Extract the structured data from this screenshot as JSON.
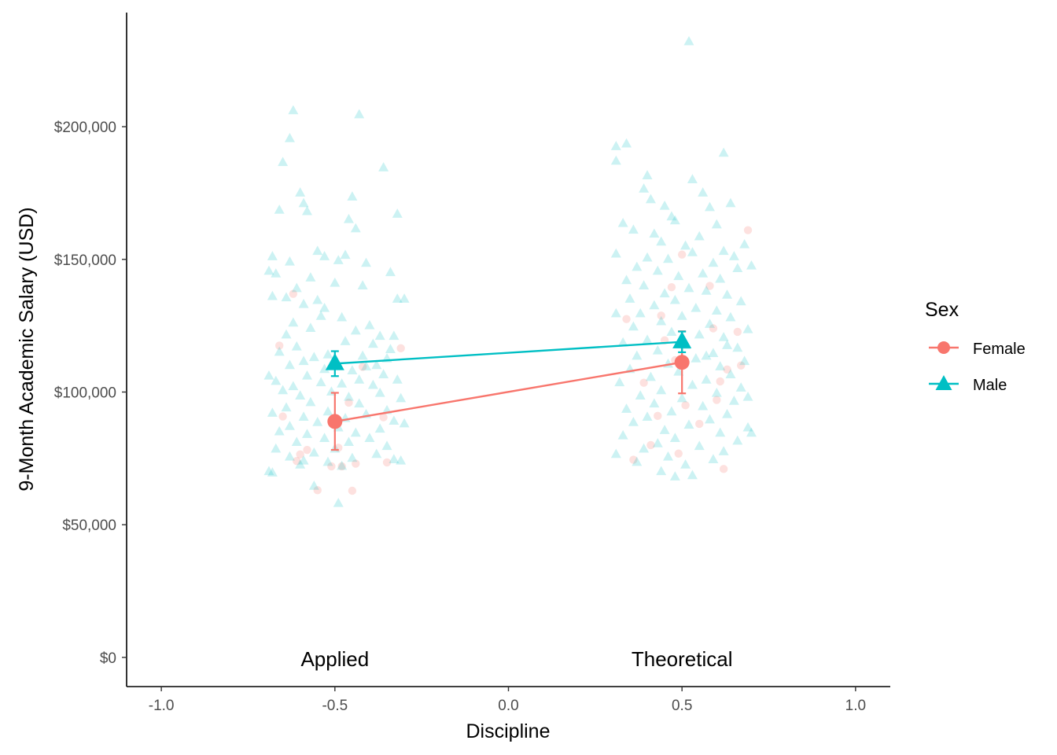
{
  "chart_data": {
    "type": "scatter",
    "title": "",
    "xlabel": "Discipline",
    "ylabel": "9-Month Academic Salary (USD)",
    "xlim": [
      -1.1,
      1.1
    ],
    "ylim": [
      -11000,
      243000
    ],
    "x_ticks": [
      -1.0,
      -0.5,
      0.0,
      0.5,
      1.0
    ],
    "x_tick_labels": [
      "-1.0",
      "-0.5",
      "0.0",
      "0.5",
      "1.0"
    ],
    "y_ticks": [
      0,
      50000,
      100000,
      150000,
      200000
    ],
    "y_tick_labels": [
      "$0",
      "$50,000",
      "$100,000",
      "$150,000",
      "$200,000"
    ],
    "group_labels": [
      {
        "text": "Applied",
        "x": -0.5,
        "y": 0
      },
      {
        "text": "Theoretical",
        "x": 0.5,
        "y": 0
      }
    ],
    "grid": false,
    "legend": {
      "title": "Sex",
      "placement": "right"
    },
    "series": [
      {
        "name": "Female",
        "color": "#F8766D",
        "marker": "circle",
        "summary": [
          {
            "x": -0.5,
            "mean": 88900,
            "ci_low": 78200,
            "ci_high": 99700
          },
          {
            "x": 0.5,
            "mean": 111200,
            "ci_low": 99500,
            "ci_high": 122900
          }
        ],
        "points": [
          [
            -0.66,
            117500
          ],
          [
            -0.62,
            137000
          ],
          [
            -0.65,
            90800
          ],
          [
            -0.58,
            78200
          ],
          [
            -0.6,
            76500
          ],
          [
            -0.61,
            74000
          ],
          [
            -0.55,
            63000
          ],
          [
            -0.51,
            72000
          ],
          [
            -0.48,
            72000
          ],
          [
            -0.45,
            62800
          ],
          [
            -0.44,
            73000
          ],
          [
            -0.42,
            109500
          ],
          [
            -0.36,
            90500
          ],
          [
            -0.35,
            73500
          ],
          [
            -0.31,
            116500
          ],
          [
            -0.49,
            79000
          ],
          [
            -0.46,
            96000
          ],
          [
            0.34,
            127500
          ],
          [
            0.36,
            74500
          ],
          [
            0.41,
            80000
          ],
          [
            0.43,
            91000
          ],
          [
            0.44,
            128800
          ],
          [
            0.45,
            119500
          ],
          [
            0.47,
            139500
          ],
          [
            0.48,
            112000
          ],
          [
            0.49,
            76800
          ],
          [
            0.5,
            151800
          ],
          [
            0.51,
            95000
          ],
          [
            0.58,
            140000
          ],
          [
            0.59,
            124000
          ],
          [
            0.6,
            97000
          ],
          [
            0.61,
            104000
          ],
          [
            0.62,
            71000
          ],
          [
            0.63,
            108500
          ],
          [
            0.66,
            122700
          ],
          [
            0.67,
            110000
          ],
          [
            0.69,
            161000
          ],
          [
            0.55,
            88000
          ],
          [
            0.39,
            103500
          ]
        ]
      },
      {
        "name": "Male",
        "color": "#00BFC4",
        "marker": "triangle",
        "summary": [
          {
            "x": -0.5,
            "mean": 110700,
            "ci_low": 106000,
            "ci_high": 115400
          },
          {
            "x": 0.5,
            "mean": 118900,
            "ci_low": 115000,
            "ci_high": 122800
          }
        ],
        "points": [
          [
            -0.62,
            206000
          ],
          [
            -0.43,
            204500
          ],
          [
            -0.63,
            195500
          ],
          [
            -0.65,
            186500
          ],
          [
            -0.36,
            184500
          ],
          [
            -0.6,
            175000
          ],
          [
            -0.59,
            171000
          ],
          [
            -0.45,
            173500
          ],
          [
            -0.66,
            168500
          ],
          [
            -0.58,
            168000
          ],
          [
            -0.32,
            167000
          ],
          [
            -0.46,
            165000
          ],
          [
            -0.44,
            161500
          ],
          [
            -0.55,
            153000
          ],
          [
            -0.53,
            151000
          ],
          [
            -0.68,
            151000
          ],
          [
            -0.49,
            149500
          ],
          [
            -0.63,
            149000
          ],
          [
            -0.41,
            148500
          ],
          [
            -0.47,
            151500
          ],
          [
            -0.69,
            145500
          ],
          [
            -0.34,
            145000
          ],
          [
            -0.67,
            144500
          ],
          [
            -0.57,
            143000
          ],
          [
            -0.5,
            141000
          ],
          [
            -0.61,
            139000
          ],
          [
            -0.68,
            136000
          ],
          [
            -0.64,
            135500
          ],
          [
            -0.55,
            134500
          ],
          [
            -0.32,
            135000
          ],
          [
            -0.3,
            135000
          ],
          [
            -0.59,
            133000
          ],
          [
            -0.53,
            131500
          ],
          [
            -0.48,
            128000
          ],
          [
            -0.62,
            126000
          ],
          [
            -0.57,
            124000
          ],
          [
            -0.44,
            123000
          ],
          [
            -0.4,
            125000
          ],
          [
            -0.37,
            121000
          ],
          [
            -0.64,
            121500
          ],
          [
            -0.33,
            121000
          ],
          [
            -0.47,
            119000
          ],
          [
            -0.39,
            118000
          ],
          [
            -0.61,
            117000
          ],
          [
            -0.66,
            115000
          ],
          [
            -0.52,
            114000
          ],
          [
            -0.42,
            113500
          ],
          [
            -0.56,
            113000
          ],
          [
            -0.35,
            112500
          ],
          [
            -0.59,
            111500
          ],
          [
            -0.63,
            110000
          ],
          [
            -0.38,
            110000
          ],
          [
            -0.41,
            109500
          ],
          [
            -0.53,
            108500
          ],
          [
            -0.45,
            108000
          ],
          [
            -0.69,
            106000
          ],
          [
            -0.36,
            106500
          ],
          [
            -0.58,
            106000
          ],
          [
            -0.43,
            104500
          ],
          [
            -0.67,
            104000
          ],
          [
            -0.32,
            104500
          ],
          [
            -0.48,
            103000
          ],
          [
            -0.54,
            103500
          ],
          [
            -0.62,
            102000
          ],
          [
            -0.39,
            102500
          ],
          [
            -0.65,
            100500
          ],
          [
            -0.51,
            100000
          ],
          [
            -0.37,
            99500
          ],
          [
            -0.6,
            98500
          ],
          [
            -0.46,
            98000
          ],
          [
            -0.31,
            97500
          ],
          [
            -0.57,
            96000
          ],
          [
            -0.43,
            95500
          ],
          [
            -0.64,
            94000
          ],
          [
            -0.35,
            93000
          ],
          [
            -0.52,
            92500
          ],
          [
            -0.68,
            92000
          ],
          [
            -0.41,
            91500
          ],
          [
            -0.59,
            90500
          ],
          [
            -0.47,
            90000
          ],
          [
            -0.33,
            89000
          ],
          [
            -0.55,
            88500
          ],
          [
            -0.63,
            87000
          ],
          [
            -0.49,
            86500
          ],
          [
            -0.37,
            86000
          ],
          [
            -0.66,
            85000
          ],
          [
            -0.44,
            84500
          ],
          [
            -0.58,
            84000
          ],
          [
            -0.53,
            82500
          ],
          [
            -0.4,
            82500
          ],
          [
            -0.61,
            81000
          ],
          [
            -0.46,
            81000
          ],
          [
            -0.35,
            79500
          ],
          [
            -0.67,
            78500
          ],
          [
            -0.5,
            78500
          ],
          [
            -0.56,
            77000
          ],
          [
            -0.38,
            76500
          ],
          [
            -0.63,
            75500
          ],
          [
            -0.45,
            75000
          ],
          [
            -0.33,
            74500
          ],
          [
            -0.59,
            74000
          ],
          [
            -0.52,
            73500
          ],
          [
            -0.31,
            74000
          ],
          [
            -0.6,
            72500
          ],
          [
            -0.48,
            72000
          ],
          [
            -0.69,
            70000
          ],
          [
            -0.68,
            69500
          ],
          [
            -0.56,
            64500
          ],
          [
            -0.49,
            58000
          ],
          [
            -0.3,
            88000
          ],
          [
            -0.34,
            116000
          ],
          [
            -0.54,
            128500
          ],
          [
            -0.42,
            140000
          ],
          [
            0.52,
            232000
          ],
          [
            0.34,
            193500
          ],
          [
            0.31,
            192500
          ],
          [
            0.62,
            190000
          ],
          [
            0.31,
            187000
          ],
          [
            0.4,
            181500
          ],
          [
            0.39,
            176500
          ],
          [
            0.56,
            175000
          ],
          [
            0.41,
            172500
          ],
          [
            0.64,
            171000
          ],
          [
            0.45,
            170000
          ],
          [
            0.58,
            169500
          ],
          [
            0.53,
            180000
          ],
          [
            0.47,
            166000
          ],
          [
            0.48,
            164500
          ],
          [
            0.6,
            163000
          ],
          [
            0.33,
            163500
          ],
          [
            0.36,
            161000
          ],
          [
            0.42,
            159500
          ],
          [
            0.55,
            158500
          ],
          [
            0.44,
            156500
          ],
          [
            0.51,
            155000
          ],
          [
            0.68,
            155500
          ],
          [
            0.62,
            153000
          ],
          [
            0.31,
            152000
          ],
          [
            0.4,
            150500
          ],
          [
            0.46,
            150000
          ],
          [
            0.53,
            152500
          ],
          [
            0.65,
            151000
          ],
          [
            0.59,
            148500
          ],
          [
            0.37,
            147000
          ],
          [
            0.66,
            146500
          ],
          [
            0.43,
            145500
          ],
          [
            0.56,
            144500
          ],
          [
            0.49,
            143500
          ],
          [
            0.34,
            142000
          ],
          [
            0.61,
            142500
          ],
          [
            0.7,
            147500
          ],
          [
            0.39,
            140000
          ],
          [
            0.52,
            139000
          ],
          [
            0.57,
            138000
          ],
          [
            0.45,
            137000
          ],
          [
            0.63,
            136500
          ],
          [
            0.35,
            135000
          ],
          [
            0.48,
            134500
          ],
          [
            0.67,
            134000
          ],
          [
            0.42,
            132500
          ],
          [
            0.54,
            131500
          ],
          [
            0.6,
            130500
          ],
          [
            0.38,
            129500
          ],
          [
            0.5,
            128500
          ],
          [
            0.64,
            128000
          ],
          [
            0.44,
            126500
          ],
          [
            0.58,
            125500
          ],
          [
            0.36,
            124500
          ],
          [
            0.69,
            123500
          ],
          [
            0.47,
            122500
          ],
          [
            0.55,
            121500
          ],
          [
            0.62,
            120500
          ],
          [
            0.4,
            119500
          ],
          [
            0.33,
            118500
          ],
          [
            0.51,
            117500
          ],
          [
            0.66,
            116500
          ],
          [
            0.43,
            115500
          ],
          [
            0.59,
            114500
          ],
          [
            0.37,
            113500
          ],
          [
            0.54,
            112500
          ],
          [
            0.68,
            111500
          ],
          [
            0.46,
            110500
          ],
          [
            0.61,
            109500
          ],
          [
            0.35,
            108500
          ],
          [
            0.49,
            107500
          ],
          [
            0.64,
            106500
          ],
          [
            0.41,
            105500
          ],
          [
            0.57,
            104500
          ],
          [
            0.32,
            103500
          ],
          [
            0.53,
            102500
          ],
          [
            0.67,
            101500
          ],
          [
            0.44,
            100500
          ],
          [
            0.6,
            99500
          ],
          [
            0.38,
            98500
          ],
          [
            0.5,
            97500
          ],
          [
            0.65,
            96500
          ],
          [
            0.42,
            95500
          ],
          [
            0.56,
            94500
          ],
          [
            0.34,
            93500
          ],
          [
            0.47,
            92500
          ],
          [
            0.63,
            91500
          ],
          [
            0.4,
            90500
          ],
          [
            0.58,
            89500
          ],
          [
            0.36,
            88500
          ],
          [
            0.52,
            87500
          ],
          [
            0.69,
            86500
          ],
          [
            0.45,
            85500
          ],
          [
            0.61,
            84500
          ],
          [
            0.33,
            83500
          ],
          [
            0.48,
            82500
          ],
          [
            0.66,
            81500
          ],
          [
            0.43,
            80500
          ],
          [
            0.55,
            79500
          ],
          [
            0.39,
            78500
          ],
          [
            0.62,
            77500
          ],
          [
            0.31,
            76500
          ],
          [
            0.46,
            75500
          ],
          [
            0.59,
            74500
          ],
          [
            0.37,
            73500
          ],
          [
            0.51,
            72500
          ],
          [
            0.44,
            70000
          ],
          [
            0.48,
            68000
          ],
          [
            0.53,
            68500
          ],
          [
            0.7,
            84500
          ],
          [
            0.69,
            98000
          ],
          [
            0.31,
            129500
          ],
          [
            0.57,
            113500
          ],
          [
            0.63,
            117500
          ]
        ]
      }
    ]
  }
}
